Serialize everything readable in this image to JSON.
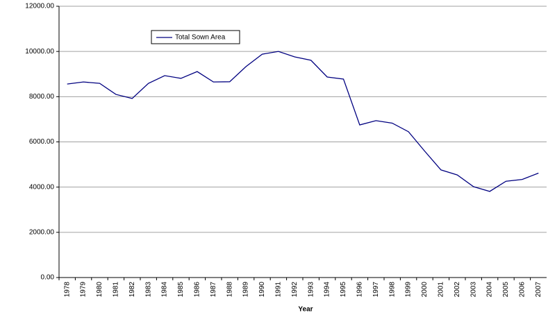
{
  "chart_data": {
    "type": "line",
    "x_label": "Year",
    "categories": [
      "1978",
      "1979",
      "1980",
      "1981",
      "1982",
      "1983",
      "1984",
      "1985",
      "1986",
      "1987",
      "1988",
      "1989",
      "1990",
      "1991",
      "1992",
      "1993",
      "1994",
      "1995",
      "1996",
      "1997",
      "1998",
      "1999",
      "2000",
      "2001",
      "2002",
      "2003",
      "2004",
      "2005",
      "2006",
      "2007"
    ],
    "series": [
      {
        "name": "Total Sown Area",
        "color": "#000080",
        "values": [
          8560,
          8650,
          8590,
          8100,
          7920,
          8590,
          8930,
          8810,
          9110,
          8650,
          8660,
          9330,
          9880,
          10000,
          9760,
          9610,
          8870,
          8780,
          6750,
          6940,
          6830,
          6450,
          5590,
          4760,
          4540,
          4020,
          3810,
          4260,
          4340,
          4620
        ]
      }
    ],
    "ylim": [
      0,
      12000
    ],
    "yticks": [
      {
        "value": 0,
        "label": "0.00"
      },
      {
        "value": 2000,
        "label": "2000.00"
      },
      {
        "value": 4000,
        "label": "4000.00"
      },
      {
        "value": 6000,
        "label": "6000.00"
      },
      {
        "value": 8000,
        "label": "8000.00"
      },
      {
        "value": 10000,
        "label": "10000.00"
      },
      {
        "value": 12000,
        "label": "12000.00"
      }
    ],
    "grid": true
  }
}
